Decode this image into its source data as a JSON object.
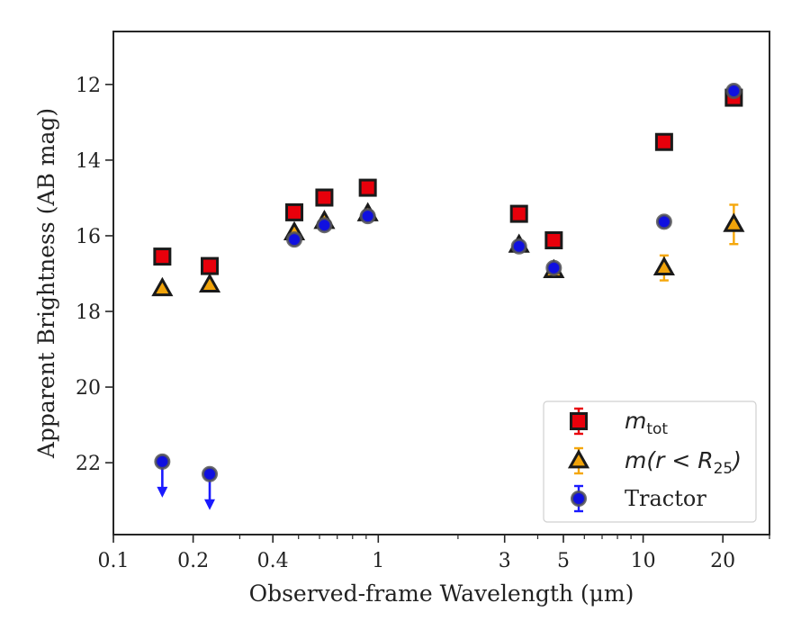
{
  "chart_data": {
    "type": "scatter",
    "xscale": "log",
    "xlim": [
      0.1,
      30
    ],
    "ylim": [
      23.9,
      10.6
    ],
    "y_inverted": true,
    "grid": false,
    "xlabel": "Observed-frame Wavelength (μm)",
    "ylabel": "Apparent Brightness (AB mag)",
    "x_ticks": [
      {
        "value": 0.1,
        "label": "0.1"
      },
      {
        "value": 0.2,
        "label": "0.2"
      },
      {
        "value": 0.4,
        "label": "0.4"
      },
      {
        "value": 1,
        "label": "1"
      },
      {
        "value": 3,
        "label": "3"
      },
      {
        "value": 5,
        "label": "5"
      },
      {
        "value": 10,
        "label": "10"
      },
      {
        "value": 20,
        "label": "20"
      }
    ],
    "y_ticks": [
      {
        "value": 12,
        "label": "12"
      },
      {
        "value": 14,
        "label": "14"
      },
      {
        "value": 16,
        "label": "16"
      },
      {
        "value": 18,
        "label": "18"
      },
      {
        "value": 20,
        "label": "20"
      },
      {
        "value": 22,
        "label": "22"
      }
    ],
    "legend_position": "lower-right",
    "series": [
      {
        "name": "m_tot",
        "marker": "square",
        "fill": "#e8000b",
        "edge": "#1a1a1a",
        "errcolor": "#e8000b",
        "points": [
          {
            "x": 0.153,
            "y": 16.55,
            "err": 0.08
          },
          {
            "x": 0.231,
            "y": 16.8,
            "err": 0.08
          },
          {
            "x": 0.482,
            "y": 15.38,
            "err": 0.05
          },
          {
            "x": 0.626,
            "y": 14.99,
            "err": 0.05
          },
          {
            "x": 0.913,
            "y": 14.73,
            "err": 0.05
          },
          {
            "x": 3.4,
            "y": 15.42,
            "err": 0.05
          },
          {
            "x": 4.6,
            "y": 16.12,
            "err": 0.05
          },
          {
            "x": 12.0,
            "y": 13.52,
            "err": 0.05
          },
          {
            "x": 22.0,
            "y": 12.35,
            "err": 0.08
          }
        ]
      },
      {
        "name": "m(r<R_25)",
        "marker": "triangle",
        "fill": "#f0a30a",
        "edge": "#1a1a1a",
        "errcolor": "#f5a70b",
        "points": [
          {
            "x": 0.153,
            "y": 17.4,
            "err": 0.05
          },
          {
            "x": 0.231,
            "y": 17.3,
            "err": 0.05
          },
          {
            "x": 0.482,
            "y": 15.92,
            "err": 0.05
          },
          {
            "x": 0.626,
            "y": 15.62,
            "err": 0.05
          },
          {
            "x": 0.913,
            "y": 15.42,
            "err": 0.05
          },
          {
            "x": 3.4,
            "y": 16.25,
            "err": 0.05
          },
          {
            "x": 4.6,
            "y": 16.92,
            "err": 0.05
          },
          {
            "x": 12.0,
            "y": 16.85,
            "err": 0.33
          },
          {
            "x": 22.0,
            "y": 15.7,
            "err": 0.52
          }
        ]
      },
      {
        "name": "Tractor",
        "marker": "circle",
        "fill": "#1010e0",
        "edge": "#555555",
        "errcolor": "#1a1aff",
        "points": [
          {
            "x": 0.153,
            "y": 21.97,
            "err": 0,
            "upper_limit": true
          },
          {
            "x": 0.231,
            "y": 22.3,
            "err": 0,
            "upper_limit": true
          },
          {
            "x": 0.482,
            "y": 16.1,
            "err": 0.05
          },
          {
            "x": 0.626,
            "y": 15.72,
            "err": 0.05
          },
          {
            "x": 0.913,
            "y": 15.48,
            "err": 0.05
          },
          {
            "x": 3.4,
            "y": 16.28,
            "err": 0.05
          },
          {
            "x": 4.6,
            "y": 16.85,
            "err": 0.05
          },
          {
            "x": 12.0,
            "y": 15.63,
            "err": 0.05
          },
          {
            "x": 22.0,
            "y": 12.17,
            "err": 0.05
          }
        ]
      }
    ],
    "legend": [
      {
        "marker": "square",
        "text": "m",
        "subscript": "tot",
        "math": true
      },
      {
        "marker": "triangle",
        "text": "m(r < R",
        "subscript": "25",
        "suffix": ")",
        "math": true
      },
      {
        "marker": "circle",
        "text": "Tractor",
        "math": false
      }
    ]
  }
}
